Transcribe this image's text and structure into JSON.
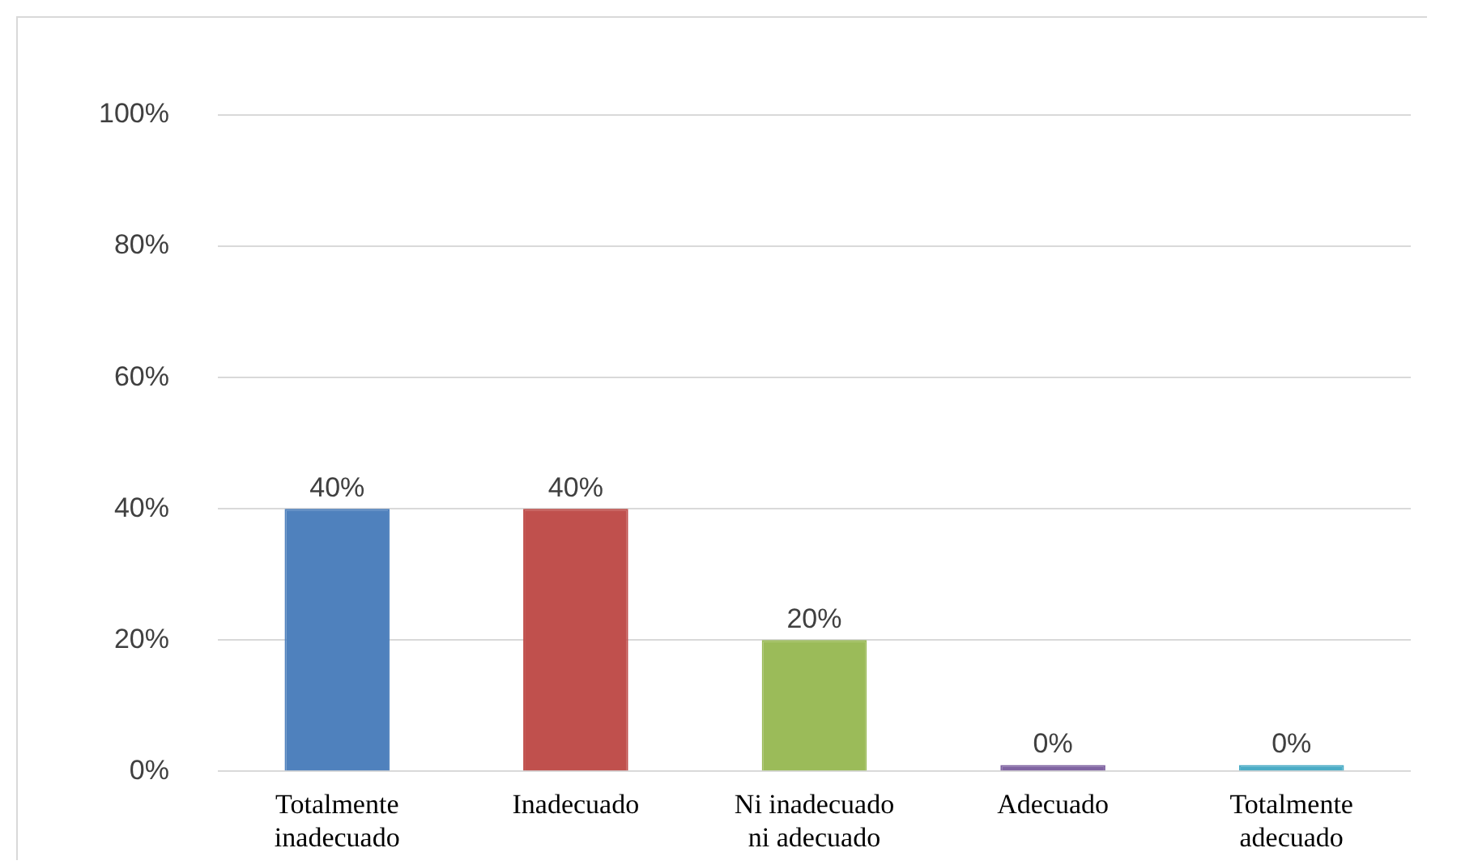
{
  "chart_data": {
    "type": "bar",
    "categories": [
      "Totalmente inadecuado",
      "Inadecuado",
      "Ni inadecuado ni adecuado",
      "Adecuado",
      "Totalmente adecuado"
    ],
    "values": [
      40,
      40,
      20,
      0,
      0
    ],
    "colors": [
      "#4f81bd",
      "#c0504d",
      "#9bbb59",
      "#8064a2",
      "#4bacc6"
    ],
    "value_labels": [
      "40%",
      "40%",
      "20%",
      "0%",
      "0%"
    ],
    "ylim": [
      0,
      100
    ],
    "yticks": [
      {
        "value": 0,
        "label": "0%"
      },
      {
        "value": 20,
        "label": "20%"
      },
      {
        "value": 40,
        "label": "40%"
      },
      {
        "value": 60,
        "label": "60%"
      },
      {
        "value": 80,
        "label": "80%"
      },
      {
        "value": 100,
        "label": "100%"
      }
    ],
    "grid": "y",
    "legend": false
  }
}
